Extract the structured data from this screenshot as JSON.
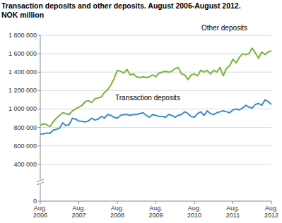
{
  "chart_data": {
    "type": "line",
    "title": "Transaction deposits and other deposits. August 2006-August 2012.",
    "subtitle": "NOK million",
    "categories": [
      "Aug. 2006",
      null,
      null,
      null,
      null,
      null,
      null,
      null,
      null,
      null,
      null,
      null,
      "Aug. 2007",
      null,
      null,
      null,
      null,
      null,
      null,
      null,
      null,
      null,
      null,
      null,
      "Aug. 2008",
      null,
      null,
      null,
      null,
      null,
      null,
      null,
      null,
      null,
      null,
      null,
      "Aug. 2009",
      null,
      null,
      null,
      null,
      null,
      null,
      null,
      null,
      null,
      null,
      null,
      "Aug. 2010",
      null,
      null,
      null,
      null,
      null,
      null,
      null,
      null,
      null,
      null,
      null,
      "Aug. 2011",
      null,
      null,
      null,
      null,
      null,
      null,
      null,
      null,
      null,
      null,
      null,
      "Aug. 2012"
    ],
    "series": [
      {
        "name": "Other deposits",
        "color": "#78b53a",
        "values": [
          820000,
          840000,
          830000,
          810000,
          860000,
          900000,
          930000,
          960000,
          950000,
          940000,
          980000,
          1000000,
          1020000,
          1040000,
          1080000,
          1090000,
          1070000,
          1110000,
          1120000,
          1130000,
          1180000,
          1210000,
          1260000,
          1330000,
          1420000,
          1410000,
          1390000,
          1430000,
          1370000,
          1380000,
          1350000,
          1340000,
          1350000,
          1340000,
          1350000,
          1370000,
          1350000,
          1390000,
          1400000,
          1410000,
          1400000,
          1410000,
          1440000,
          1450000,
          1380000,
          1370000,
          1320000,
          1370000,
          1380000,
          1360000,
          1420000,
          1400000,
          1420000,
          1380000,
          1420000,
          1400000,
          1450000,
          1360000,
          1440000,
          1470000,
          1540000,
          1500000,
          1560000,
          1600000,
          1590000,
          1600000,
          1660000,
          1610000,
          1550000,
          1620000,
          1590000,
          1620000,
          1630000
        ]
      },
      {
        "name": "Transaction deposits",
        "color": "#3a8cc6",
        "values": [
          730000,
          730000,
          740000,
          735000,
          770000,
          780000,
          790000,
          850000,
          820000,
          830000,
          900000,
          890000,
          870000,
          865000,
          860000,
          870000,
          900000,
          880000,
          890000,
          920000,
          900000,
          940000,
          930000,
          910000,
          900000,
          930000,
          940000,
          940000,
          930000,
          940000,
          940000,
          950000,
          960000,
          930000,
          910000,
          940000,
          930000,
          920000,
          920000,
          910000,
          940000,
          930000,
          910000,
          930000,
          940000,
          970000,
          950000,
          920000,
          910000,
          950000,
          970000,
          930000,
          980000,
          950000,
          940000,
          960000,
          970000,
          980000,
          970000,
          960000,
          990000,
          1000000,
          990000,
          1010000,
          1040000,
          1020000,
          1010000,
          1050000,
          1060000,
          1040000,
          1100000,
          1080000,
          1050000
        ]
      }
    ],
    "ylim": [
      0,
      1800000
    ],
    "yticks": [
      0,
      {
        "value": 400000,
        "label": "400 000"
      },
      {
        "value": 600000,
        "label": "600 000"
      },
      {
        "value": 800000,
        "label": "800 000"
      },
      {
        "value": 1000000,
        "label": "1 000 000"
      },
      {
        "value": 1200000,
        "label": "1 200 000"
      },
      {
        "value": 1400000,
        "label": "1 400 000"
      },
      {
        "value": 1600000,
        "label": "1 600 000"
      },
      {
        "value": 1800000,
        "label": "1 800 000"
      }
    ],
    "grid": true
  }
}
